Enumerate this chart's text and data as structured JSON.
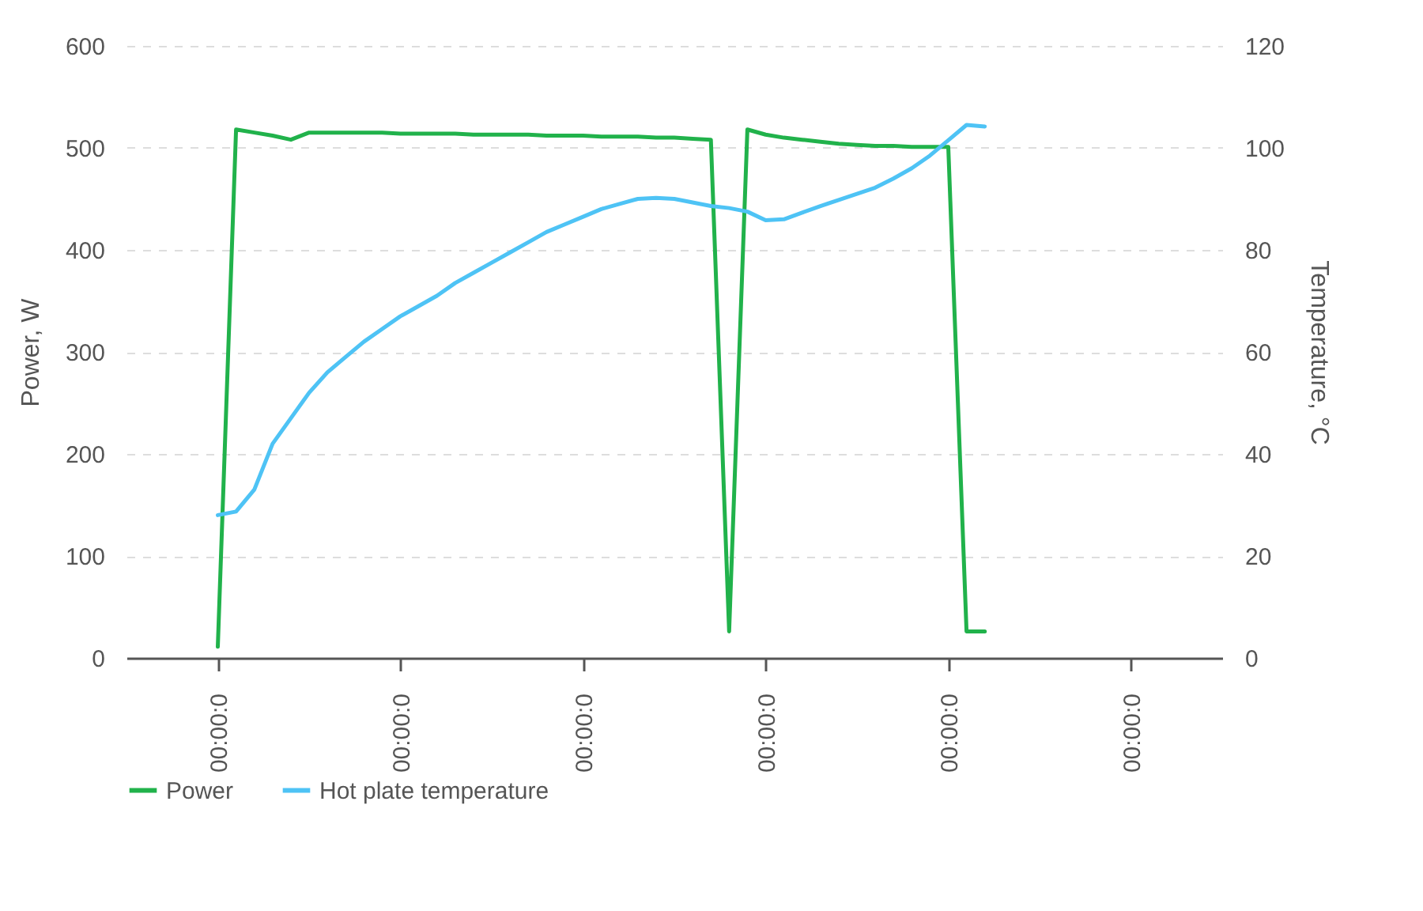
{
  "chart_data": {
    "type": "line",
    "ylabel": "Power, W",
    "y2label": "Temperature, °C",
    "categories": [
      null,
      null,
      null,
      null,
      null,
      "00:00:0",
      null,
      null,
      null,
      null,
      null,
      null,
      null,
      null,
      null,
      "00:00:0",
      null,
      null,
      null,
      null,
      null,
      null,
      null,
      null,
      null,
      "00:00:0",
      null,
      null,
      null,
      null,
      null,
      null,
      null,
      null,
      null,
      "00:00:0",
      null,
      null,
      null,
      null,
      null,
      null,
      null,
      null,
      null,
      "00:00:0",
      null,
      null,
      null,
      null,
      null,
      null,
      null,
      null,
      null,
      "00:00:0",
      null,
      null,
      null,
      null,
      null
    ],
    "ylim": [
      0,
      600
    ],
    "yticks": [
      0,
      100,
      200,
      300,
      400,
      500,
      600
    ],
    "y2lim": [
      0,
      120
    ],
    "y2ticks": [
      0,
      20,
      40,
      60,
      80,
      100,
      120
    ],
    "grid": "y",
    "legend": "bottom",
    "line_style": "solid",
    "series": [
      {
        "name": "Power",
        "color": "#21b24b",
        "values": [
          null,
          null,
          null,
          null,
          null,
          11,
          518,
          515,
          512,
          508,
          515,
          515,
          515,
          515,
          515,
          514,
          514,
          514,
          514,
          513,
          513,
          513,
          513,
          512,
          512,
          512,
          511,
          511,
          511,
          510,
          510,
          509,
          508,
          26,
          518,
          513,
          510,
          508,
          506,
          504,
          503,
          502,
          502,
          501,
          501,
          501,
          26,
          26,
          null,
          null,
          null,
          null,
          null,
          null,
          null,
          null,
          null,
          null,
          null,
          null,
          null
        ]
      },
      {
        "name": "Hot plate temperature",
        "color": "#4ec3f5",
        "axis": "y2",
        "values": [
          null,
          null,
          null,
          null,
          null,
          28,
          28.7,
          33,
          42,
          47,
          52,
          56,
          59,
          62,
          64.5,
          67,
          69,
          71,
          73.5,
          75.5,
          77.5,
          79.5,
          81.5,
          83.5,
          85,
          86.5,
          88,
          89,
          90,
          90.2,
          90,
          89.3,
          88.6,
          88.2,
          87.5,
          85.8,
          86,
          87.3,
          88.6,
          89.8,
          91,
          92.2,
          94,
          96,
          98.5,
          101.5,
          104.5,
          104.2,
          null,
          null,
          null,
          null,
          null,
          null,
          null,
          null,
          null,
          null,
          null,
          null,
          null
        ]
      }
    ]
  }
}
